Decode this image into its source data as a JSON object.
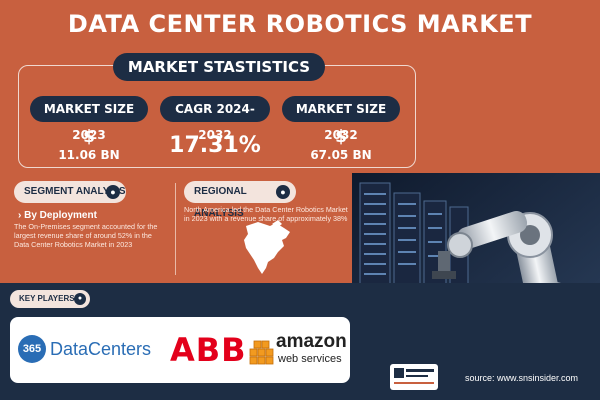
{
  "title": "DATA CENTER ROBOTICS MARKET",
  "stats": {
    "heading": "MARKET STASTISTICS",
    "items": [
      {
        "label": "MARKET SIZE 2023",
        "currency": "$",
        "value": "11.06 BN"
      },
      {
        "label": "CAGR 2024-2032",
        "currency": "",
        "value": "17.31%"
      },
      {
        "label": "MARKET SIZE 2032",
        "currency": "$",
        "value": "67.05 BN"
      }
    ]
  },
  "segment": {
    "heading": "SEGMENT ANALYSIS",
    "subheading": "By Deployment",
    "text": "The On-Premises segment accounted for the largest revenue share of around 52% in the Data Center Robotics Market in 2023"
  },
  "regional": {
    "heading": "REGIONAL ANALYSIS",
    "text": "North America led the Data Center Robotics Market in 2023 with a revenue share of approximately 38%"
  },
  "key_players": {
    "heading": "KEY PLAYERS",
    "logos": [
      {
        "number": "365",
        "name": "DataCenters"
      },
      {
        "name": "ABB"
      },
      {
        "name": "amazon",
        "sub": "web services"
      }
    ]
  },
  "source": "source: www.snsinsider.com",
  "colors": {
    "background": "#c8603f",
    "navy": "#1d2d44",
    "pill": "#f3e4dd"
  }
}
